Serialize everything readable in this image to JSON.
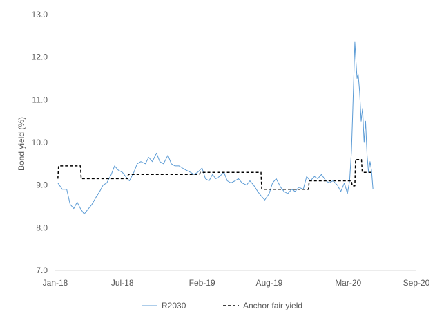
{
  "chart_data": {
    "type": "line",
    "title": "",
    "xlabel": "",
    "ylabel": "Bond yield (%)",
    "ylim": [
      7.0,
      13.0
    ],
    "xlim": [
      "2018-01-01",
      "2020-09-01"
    ],
    "y_ticks": [
      "7.0",
      "8.0",
      "9.0",
      "10.0",
      "11.0",
      "12.0",
      "13.0"
    ],
    "x_ticks": [
      {
        "date": "2018-01-01",
        "label": "Jan-18"
      },
      {
        "date": "2018-07-01",
        "label": "Jul-18"
      },
      {
        "date": "2019-02-01",
        "label": "Feb-19"
      },
      {
        "date": "2019-08-01",
        "label": "Aug-19"
      },
      {
        "date": "2020-03-01",
        "label": "Mar-20"
      },
      {
        "date": "2020-09-01",
        "label": "Sep-20"
      }
    ],
    "grid": false,
    "legend_position": "bottom",
    "series": [
      {
        "name": "R2030",
        "style": "solid",
        "color": "#5b9bd5",
        "points": [
          [
            "2018-01-08",
            9.05
          ],
          [
            "2018-01-20",
            8.9
          ],
          [
            "2018-02-01",
            8.9
          ],
          [
            "2018-02-10",
            8.55
          ],
          [
            "2018-02-20",
            8.45
          ],
          [
            "2018-03-01",
            8.6
          ],
          [
            "2018-03-10",
            8.45
          ],
          [
            "2018-03-20",
            8.32
          ],
          [
            "2018-04-01",
            8.45
          ],
          [
            "2018-04-10",
            8.55
          ],
          [
            "2018-04-20",
            8.7
          ],
          [
            "2018-05-01",
            8.85
          ],
          [
            "2018-05-10",
            9.0
          ],
          [
            "2018-05-20",
            9.05
          ],
          [
            "2018-06-01",
            9.25
          ],
          [
            "2018-06-10",
            9.45
          ],
          [
            "2018-06-20",
            9.35
          ],
          [
            "2018-07-01",
            9.3
          ],
          [
            "2018-07-10",
            9.2
          ],
          [
            "2018-07-20",
            9.1
          ],
          [
            "2018-08-01",
            9.3
          ],
          [
            "2018-08-10",
            9.5
          ],
          [
            "2018-08-20",
            9.55
          ],
          [
            "2018-09-01",
            9.5
          ],
          [
            "2018-09-10",
            9.65
          ],
          [
            "2018-09-20",
            9.55
          ],
          [
            "2018-10-01",
            9.75
          ],
          [
            "2018-10-10",
            9.55
          ],
          [
            "2018-10-20",
            9.5
          ],
          [
            "2018-11-01",
            9.7
          ],
          [
            "2018-11-10",
            9.5
          ],
          [
            "2018-11-20",
            9.45
          ],
          [
            "2018-12-01",
            9.45
          ],
          [
            "2018-12-10",
            9.4
          ],
          [
            "2018-12-20",
            9.35
          ],
          [
            "2019-01-01",
            9.3
          ],
          [
            "2019-01-10",
            9.25
          ],
          [
            "2019-01-20",
            9.3
          ],
          [
            "2019-02-01",
            9.4
          ],
          [
            "2019-02-10",
            9.15
          ],
          [
            "2019-02-20",
            9.1
          ],
          [
            "2019-03-01",
            9.25
          ],
          [
            "2019-03-10",
            9.15
          ],
          [
            "2019-03-20",
            9.2
          ],
          [
            "2019-04-01",
            9.3
          ],
          [
            "2019-04-10",
            9.1
          ],
          [
            "2019-04-20",
            9.05
          ],
          [
            "2019-05-01",
            9.1
          ],
          [
            "2019-05-10",
            9.15
          ],
          [
            "2019-05-20",
            9.05
          ],
          [
            "2019-06-01",
            9.0
          ],
          [
            "2019-06-10",
            9.1
          ],
          [
            "2019-06-20",
            9.0
          ],
          [
            "2019-07-01",
            8.85
          ],
          [
            "2019-07-10",
            8.75
          ],
          [
            "2019-07-20",
            8.65
          ],
          [
            "2019-08-01",
            8.8
          ],
          [
            "2019-08-10",
            9.05
          ],
          [
            "2019-08-20",
            9.15
          ],
          [
            "2019-09-01",
            8.95
          ],
          [
            "2019-09-10",
            8.85
          ],
          [
            "2019-09-20",
            8.8
          ],
          [
            "2019-10-01",
            8.9
          ],
          [
            "2019-10-10",
            8.85
          ],
          [
            "2019-10-20",
            8.95
          ],
          [
            "2019-11-01",
            8.9
          ],
          [
            "2019-11-10",
            9.2
          ],
          [
            "2019-11-20",
            9.1
          ],
          [
            "2019-12-01",
            9.2
          ],
          [
            "2019-12-10",
            9.15
          ],
          [
            "2019-12-20",
            9.25
          ],
          [
            "2020-01-01",
            9.1
          ],
          [
            "2020-01-10",
            9.05
          ],
          [
            "2020-01-20",
            9.1
          ],
          [
            "2020-02-01",
            9.0
          ],
          [
            "2020-02-10",
            8.85
          ],
          [
            "2020-02-20",
            9.05
          ],
          [
            "2020-02-28",
            8.8
          ],
          [
            "2020-03-05",
            9.1
          ],
          [
            "2020-03-10",
            9.8
          ],
          [
            "2020-03-13",
            10.6
          ],
          [
            "2020-03-16",
            11.5
          ],
          [
            "2020-03-19",
            12.35
          ],
          [
            "2020-03-22",
            11.9
          ],
          [
            "2020-03-25",
            11.5
          ],
          [
            "2020-03-28",
            11.6
          ],
          [
            "2020-04-01",
            11.2
          ],
          [
            "2020-04-05",
            10.5
          ],
          [
            "2020-04-09",
            10.8
          ],
          [
            "2020-04-13",
            10.0
          ],
          [
            "2020-04-17",
            10.5
          ],
          [
            "2020-04-21",
            9.7
          ],
          [
            "2020-04-25",
            9.3
          ],
          [
            "2020-04-29",
            9.55
          ],
          [
            "2020-05-03",
            9.35
          ],
          [
            "2020-05-07",
            8.9
          ]
        ]
      },
      {
        "name": "Anchor fair yield",
        "style": "dashed",
        "color": "#000000",
        "points": [
          [
            "2018-01-08",
            9.15
          ],
          [
            "2018-01-10",
            9.45
          ],
          [
            "2018-03-10",
            9.45
          ],
          [
            "2018-03-12",
            9.15
          ],
          [
            "2018-07-15",
            9.15
          ],
          [
            "2018-07-17",
            9.25
          ],
          [
            "2019-01-25",
            9.25
          ],
          [
            "2019-01-27",
            9.3
          ],
          [
            "2019-07-10",
            9.3
          ],
          [
            "2019-07-12",
            8.9
          ],
          [
            "2019-11-15",
            8.9
          ],
          [
            "2019-11-17",
            9.1
          ],
          [
            "2020-03-10",
            9.1
          ],
          [
            "2020-03-12",
            8.98
          ],
          [
            "2020-03-19",
            8.98
          ],
          [
            "2020-03-21",
            9.6
          ],
          [
            "2020-04-06",
            9.6
          ],
          [
            "2020-04-08",
            9.3
          ],
          [
            "2020-05-07",
            9.3
          ]
        ]
      }
    ]
  }
}
